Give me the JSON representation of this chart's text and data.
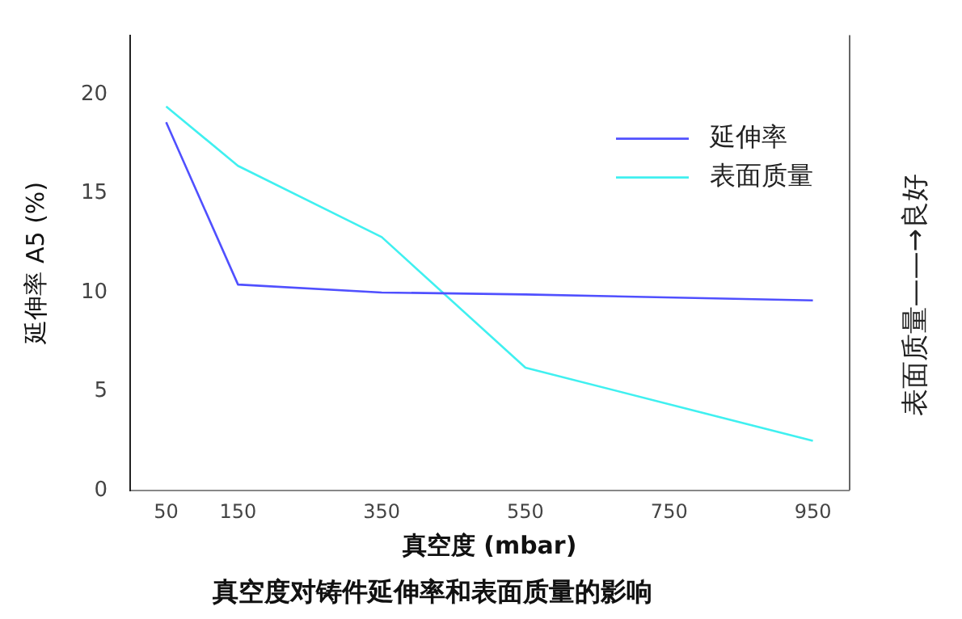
{
  "chart_data": {
    "type": "line",
    "title": "真空度对铸件延伸率和表面质量的影响",
    "xlabel": "真空度 (mbar)",
    "ylabel": "延伸率 A5 (%)",
    "y2label": "表面质量——→良好",
    "x": [
      50,
      150,
      350,
      550,
      950
    ],
    "series": [
      {
        "name": "延伸率",
        "color": "#5050ff",
        "values": [
          18.6,
          10.4,
          10.0,
          9.9,
          9.6
        ]
      },
      {
        "name": "表面质量",
        "color": "#40f0f0",
        "values": [
          19.4,
          16.4,
          12.8,
          6.2,
          2.5
        ]
      }
    ],
    "xlim": [
      0,
      1000
    ],
    "xticks": [
      50,
      150,
      350,
      550,
      750,
      950
    ],
    "ylim": [
      0,
      23
    ],
    "yticks": [
      0,
      5,
      10,
      15,
      20
    ],
    "grid": false,
    "legend": "top right",
    "marker": "none",
    "line_style": "solid"
  }
}
